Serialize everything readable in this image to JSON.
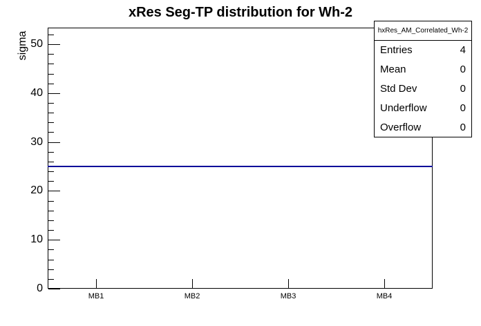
{
  "title": "xRes Seg-TP distribution for Wh-2",
  "colors": {
    "histogram_line": "#000099",
    "axis": "#000000",
    "background": "#ffffff"
  },
  "stats_box": {
    "header": "hxRes_AM_Correlated_Wh-2",
    "rows": [
      {
        "label": "Entries",
        "value": "4"
      },
      {
        "label": "Mean",
        "value": "0"
      },
      {
        "label": "Std Dev",
        "value": "0"
      },
      {
        "label": "Underflow",
        "value": "0"
      },
      {
        "label": "Overflow",
        "value": "0"
      }
    ]
  },
  "chart_data": {
    "type": "line",
    "title": "xRes Seg-TP distribution for Wh-2",
    "categories": [
      "MB1",
      "MB2",
      "MB3",
      "MB4"
    ],
    "series": [
      {
        "name": "hxRes_AM_Correlated_Wh-2",
        "values": [
          25,
          25,
          25,
          25
        ]
      }
    ],
    "xlabel": "",
    "ylabel": "sigma",
    "ylim": [
      0,
      53.4
    ],
    "y_major_step": 10,
    "y_minor_step": 2,
    "grid": false,
    "legend_position": "stats-box-top-right"
  }
}
